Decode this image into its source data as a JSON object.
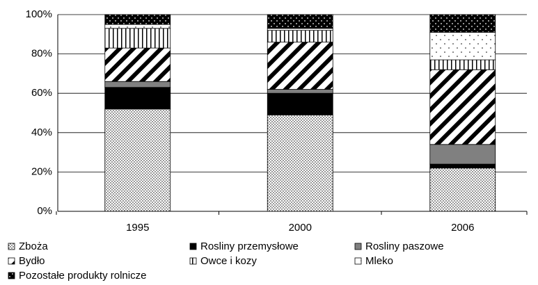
{
  "chart_data": {
    "type": "stacked-bar",
    "categories": [
      "1995",
      "2000",
      "2006"
    ],
    "series": [
      {
        "name": "Zboża",
        "color": "#ffffff",
        "pattern": "dots",
        "values": [
          52,
          49,
          22
        ]
      },
      {
        "name": "Rosliny przemysłowe",
        "color": "#000000",
        "pattern": "solid",
        "values": [
          11,
          11,
          2
        ]
      },
      {
        "name": "Rosliny paszowe",
        "color": "#808080",
        "pattern": "solid",
        "values": [
          3,
          2,
          10
        ]
      },
      {
        "name": "Bydło",
        "color": "#ffffff",
        "pattern": "diagonal",
        "values": [
          17,
          24,
          38
        ]
      },
      {
        "name": "Owce i kozy",
        "color": "#ffffff",
        "pattern": "vertical",
        "values": [
          10,
          6,
          5
        ]
      },
      {
        "name": "Mleko",
        "color": "#ffffff",
        "pattern": "sparse-dots",
        "values": [
          2,
          1,
          14
        ]
      },
      {
        "name": "Pozostałe produkty rolnicze",
        "color": "#000000",
        "pattern": "inverse-dots",
        "values": [
          5,
          7,
          9
        ]
      }
    ],
    "ylim": [
      0,
      100
    ],
    "yticks": [
      {
        "value": 0,
        "label": "0%"
      },
      {
        "value": 20,
        "label": "20%"
      },
      {
        "value": 40,
        "label": "40%"
      },
      {
        "value": 60,
        "label": "60%"
      },
      {
        "value": 80,
        "label": "80%"
      },
      {
        "value": 100,
        "label": "100%"
      }
    ],
    "grid": true,
    "legend": "bottom"
  }
}
